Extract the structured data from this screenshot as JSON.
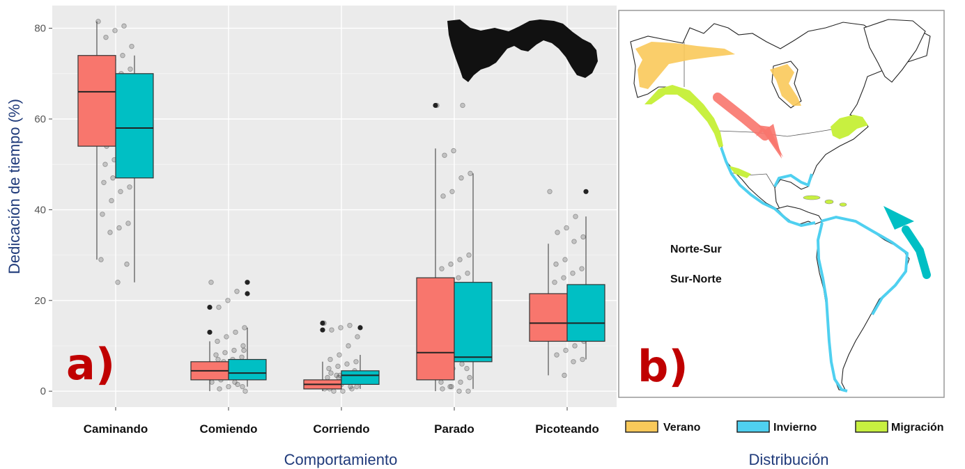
{
  "chart_data": [
    {
      "type": "box",
      "panel_label": "a)",
      "xlabel": "Comportamiento",
      "ylabel": "Dedicación de tiempo (%)",
      "ylim": [
        -3.5,
        85
      ],
      "yticks": [
        0,
        20,
        40,
        60,
        80
      ],
      "grid": true,
      "categories": [
        "Caminando",
        "Comiendo",
        "Corriendo",
        "Parado",
        "Picoteando"
      ],
      "series": [
        {
          "name": "Norte-Sur",
          "color": "#F8766D",
          "boxes": [
            {
              "whislo": 29,
              "q1": 54,
              "med": 66,
              "q3": 74,
              "whishi": 81.5,
              "fliers": []
            },
            {
              "whislo": 0,
              "q1": 2.5,
              "med": 4.5,
              "q3": 6.5,
              "whishi": 11,
              "fliers": [
                13,
                18.5
              ]
            },
            {
              "whislo": 0,
              "q1": 0.5,
              "med": 1.5,
              "q3": 2.5,
              "whishi": 6.5,
              "fliers": [
                13.5,
                15
              ]
            },
            {
              "whislo": 0,
              "q1": 2.5,
              "med": 8.5,
              "q3": 25,
              "whishi": 53.5,
              "fliers": [
                63
              ]
            },
            {
              "whislo": 3.5,
              "q1": 11,
              "med": 15,
              "q3": 21.5,
              "whishi": 32.5,
              "fliers": []
            }
          ]
        },
        {
          "name": "Sur-Norte",
          "color": "#00BFC4",
          "boxes": [
            {
              "whislo": 24,
              "q1": 47,
              "med": 58,
              "q3": 70,
              "whishi": 74,
              "fliers": []
            },
            {
              "whislo": 1,
              "q1": 2.5,
              "med": 4,
              "q3": 7,
              "whishi": 14,
              "fliers": [
                21.5,
                24
              ]
            },
            {
              "whislo": 0.5,
              "q1": 1.5,
              "med": 3.5,
              "q3": 4.5,
              "whishi": 8,
              "fliers": [
                14
              ]
            },
            {
              "whislo": 0.5,
              "q1": 6.5,
              "med": 7.5,
              "q3": 24,
              "whishi": 48,
              "fliers": []
            },
            {
              "whislo": 7,
              "q1": 11,
              "med": 15,
              "q3": 23.5,
              "whishi": 38.5,
              "fliers": [
                44
              ]
            }
          ]
        }
      ],
      "jitter_points": [
        [
          81.5,
          80.5,
          79.5,
          78,
          76,
          74,
          73,
          72,
          71,
          70,
          70,
          69,
          68,
          67,
          66,
          65,
          64,
          63,
          62,
          61,
          60,
          59,
          58,
          57,
          56,
          55,
          54,
          53,
          52,
          51,
          50,
          49,
          48,
          47,
          46,
          45,
          44,
          42,
          39,
          37,
          36,
          35,
          29,
          28,
          24
        ],
        [
          24,
          22,
          20,
          18.5,
          14,
          13,
          12,
          11,
          10,
          9,
          8.5,
          8,
          7.5,
          7,
          6.5,
          6,
          5.5,
          5,
          4.5,
          4,
          3.5,
          3,
          2.5,
          2,
          1.5,
          1,
          0.5,
          0,
          3,
          5,
          7,
          9,
          2,
          4,
          6,
          1,
          3
        ],
        [
          15,
          14.5,
          14,
          13.5,
          12,
          10,
          8,
          7,
          6.5,
          6,
          5.5,
          5,
          4.5,
          4,
          3.5,
          3,
          2.5,
          2,
          1.5,
          1,
          0.5,
          0,
          0,
          0.5,
          1,
          1.5,
          2,
          2.5,
          3,
          3.5,
          4,
          1,
          2,
          3,
          0.5
        ],
        [
          63,
          63,
          53,
          52,
          48,
          47,
          44,
          43,
          30,
          29,
          28,
          27,
          26,
          25,
          23,
          22,
          21,
          20,
          19,
          18,
          17,
          15,
          14,
          12,
          10,
          9,
          8,
          7,
          6,
          5,
          4,
          3,
          2,
          1,
          0.5,
          0,
          0,
          1,
          2,
          5
        ],
        [
          44,
          38.5,
          36,
          35,
          34,
          33,
          29,
          28,
          27,
          26,
          25,
          24,
          23,
          22,
          21,
          20,
          19,
          18.5,
          18,
          17,
          16.5,
          16,
          15,
          14,
          13,
          12.5,
          12,
          11,
          10,
          9,
          8,
          7,
          6.5,
          3.5
        ]
      ]
    },
    {
      "type": "map",
      "panel_label": "b)",
      "xlabel": "Distribución",
      "colors": {
        "verano": "#F9C95A",
        "invierno": "#4FD0F0",
        "migracion": "#C8F040",
        "norte_sur": "#F8766D",
        "sur_norte": "#00BFC4"
      }
    }
  ],
  "legends": {
    "groups": [
      {
        "label": "Norte-Sur",
        "color": "#F8766D"
      },
      {
        "label": "Sur-Norte",
        "color": "#00BFC4"
      }
    ],
    "seasons": [
      {
        "label": "Verano",
        "color": "#F9C95A"
      },
      {
        "label": "Invierno",
        "color": "#4FD0F0"
      },
      {
        "label": "Migración",
        "color": "#C8F040"
      }
    ]
  },
  "icons": {
    "inset": "panama-silhouette-icon",
    "map": "americas-map-icon"
  }
}
